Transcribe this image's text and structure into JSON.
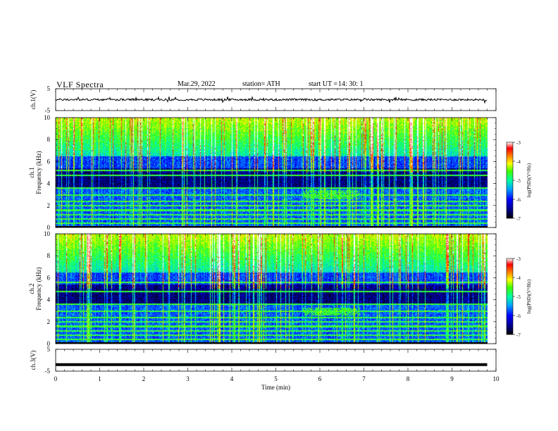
{
  "header": {
    "title": "VLF  Spectra",
    "date": "Mar.29, 2022",
    "station": "station= ATH",
    "start_label": "start  UT  =",
    "start_time": "14: 30: 1"
  },
  "chart_data": [
    {
      "type": "line",
      "title": "",
      "ylabel": "ch.1(V)",
      "ylim": [
        -5,
        5
      ],
      "yticks": [
        "5",
        "-5"
      ],
      "description_series": "waveform",
      "x": [
        0,
        1,
        2,
        3,
        4,
        5,
        6,
        7,
        8,
        9,
        9.8
      ],
      "values": [
        0,
        0.2,
        -0.1,
        0.1,
        0,
        -0.1,
        0.1,
        0,
        0.1,
        -0.1,
        0
      ]
    },
    {
      "type": "heatmap",
      "ylabel": "ch.1\nFrequency  (kHz)",
      "ylabel_lines": [
        "ch.1",
        "Frequency  (kHz)"
      ],
      "ylim": [
        0,
        10
      ],
      "yticks": [
        "10",
        "8",
        "6",
        "4",
        "2",
        "0"
      ],
      "xlim": [
        0,
        9.8
      ],
      "colorbar": {
        "label": "log(PSD)(V²/Hz)",
        "ticks": [
          "-3",
          "-4",
          "-5",
          "-6",
          "-7"
        ],
        "range": [
          -7,
          -3
        ]
      },
      "features": {
        "lines_khz": [
          0.4,
          0.8,
          1.2,
          1.6,
          2.0,
          2.4,
          3.0,
          3.6,
          4.8,
          5.2
        ],
        "burst_band_khz": [
          2.6,
          3.4
        ],
        "burst_time_min": [
          5.6,
          6.9
        ]
      }
    },
    {
      "type": "heatmap",
      "ylabel_lines": [
        "ch.2",
        "Frequency  (kHz)"
      ],
      "ylim": [
        0,
        10
      ],
      "yticks": [
        "10",
        "8",
        "6",
        "4",
        "2",
        "0"
      ],
      "xlim": [
        0,
        9.8
      ],
      "colorbar": {
        "label": "log(PSD)(V²/Hz)",
        "ticks": [
          "-3",
          "-4",
          "-5",
          "-6",
          "-7"
        ],
        "range": [
          -7,
          -3
        ]
      },
      "features": {
        "lines_khz": [
          0.4,
          0.8,
          1.2,
          1.6,
          2.0,
          2.4,
          3.0,
          3.6,
          4.8,
          5.6
        ],
        "burst_band_khz": [
          2.6,
          3.3
        ],
        "burst_time_min": [
          5.6,
          6.9
        ]
      }
    },
    {
      "type": "line",
      "ylabel": "ch.3(V)",
      "ylim": [
        -5,
        5
      ],
      "yticks": [
        "5",
        "-5"
      ],
      "x": [
        0,
        9.8
      ],
      "values": [
        -2,
        -2
      ]
    }
  ],
  "xaxis": {
    "label": "Time  (min)",
    "ticks": [
      "0",
      "1",
      "2",
      "3",
      "4",
      "5",
      "6",
      "7",
      "8",
      "9",
      "10"
    ],
    "range": [
      0,
      10
    ]
  },
  "colors": {
    "background": "#000066",
    "colormap": [
      "#000000",
      "#000080",
      "#0000ff",
      "#00a0ff",
      "#00ffb0",
      "#40ff00",
      "#ffff00",
      "#ff8000",
      "#ff0000",
      "#ffffff"
    ]
  }
}
